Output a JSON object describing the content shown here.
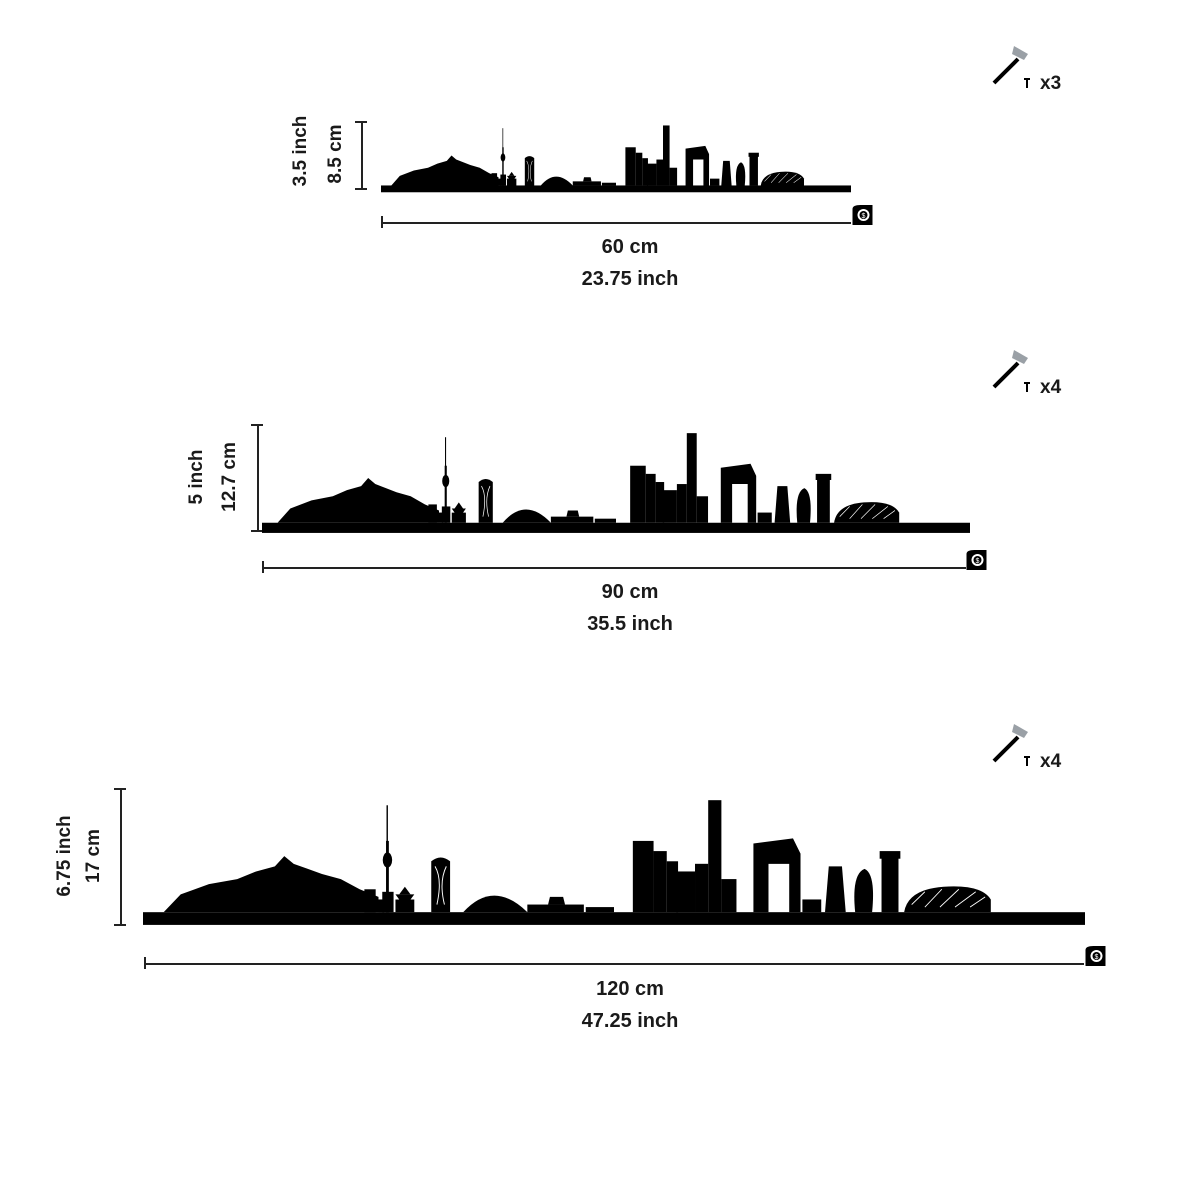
{
  "variants": [
    {
      "id": "small",
      "width_cm": "60 cm",
      "width_inch": "23.75 inch",
      "height_inch": "3.5 inch",
      "height_cm": "8.5 cm",
      "nails": "x3"
    },
    {
      "id": "medium",
      "width_cm": "90 cm",
      "width_inch": "35.5 inch",
      "height_inch": "5 inch",
      "height_cm": "12.7 cm",
      "nails": "x4"
    },
    {
      "id": "large",
      "width_cm": "120 cm",
      "width_inch": "47.25 inch",
      "height_inch": "6.75 inch",
      "height_cm": "17 cm",
      "nails": "x4"
    }
  ],
  "icons": {
    "hammer": "hammer-icon",
    "nail": "nail-icon",
    "tape": "tape-measure-icon"
  },
  "colors": {
    "silhouette": "#000000",
    "text": "#1a1a1a",
    "hammer_head": "#9aa0a6"
  }
}
